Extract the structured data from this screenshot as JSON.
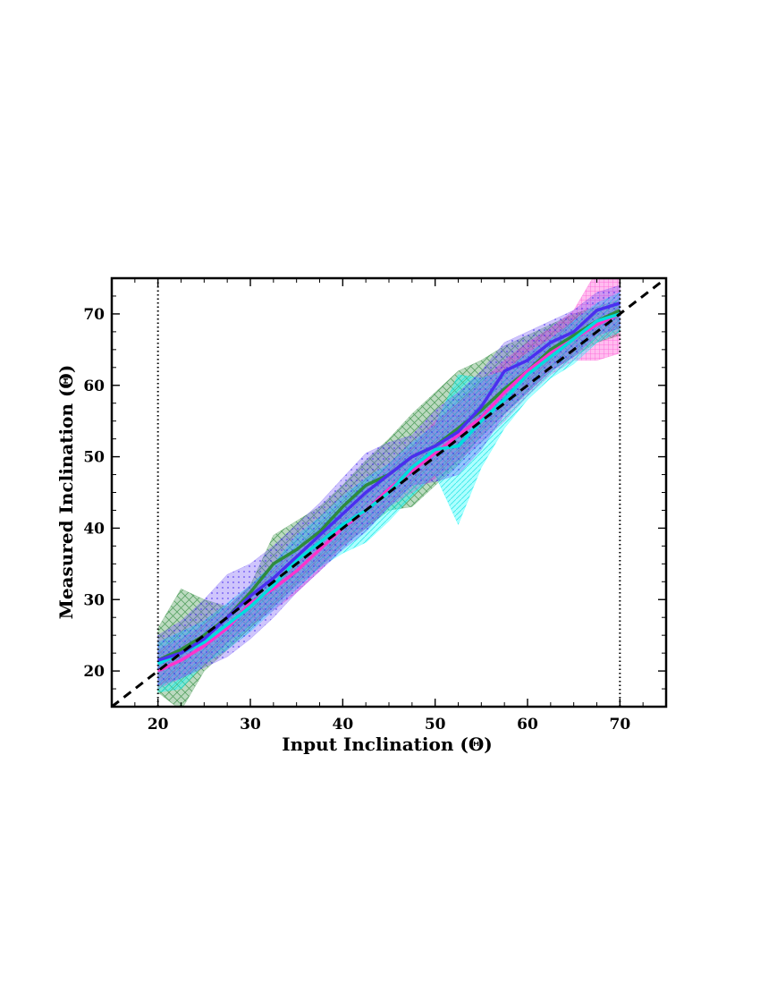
{
  "chart_data": {
    "type": "area",
    "xlabel": "Input Inclination (Θ)",
    "ylabel": "Measured Inclination (Θ)",
    "xlim": [
      15,
      75
    ],
    "ylim": [
      15,
      75
    ],
    "xticks": [
      20,
      30,
      40,
      50,
      60,
      70
    ],
    "yticks": [
      20,
      30,
      40,
      50,
      60,
      70
    ],
    "x_tick_labels": [
      "20",
      "30",
      "40",
      "50",
      "60",
      "70"
    ],
    "y_tick_labels": [
      "20",
      "30",
      "40",
      "50",
      "60",
      "70"
    ],
    "grid": false,
    "legend": "none",
    "vertical_reference_lines": [
      20,
      70
    ],
    "one_to_one_line": {
      "x": [
        15,
        75
      ],
      "y": [
        15,
        75
      ],
      "style": "dashed",
      "color": "#000000"
    },
    "x": [
      20,
      22.5,
      25,
      27.5,
      30,
      32.5,
      35,
      37.5,
      40,
      42.5,
      45,
      47.5,
      50,
      52.5,
      55,
      57.5,
      60,
      62.5,
      65,
      67.5,
      70
    ],
    "series": [
      {
        "color": "#2e8b3c",
        "fill": "#2e8b3c",
        "hatch": "cross",
        "y": [
          21.5,
          23,
          25,
          27.5,
          31,
          35,
          37,
          39.5,
          43,
          46,
          47.5,
          50,
          51.5,
          54,
          56.5,
          59.5,
          62,
          65,
          67,
          69,
          70.5
        ],
        "lower": [
          17,
          14.5,
          20,
          23,
          26,
          29,
          32,
          34.5,
          37.5,
          40,
          42.5,
          43,
          46,
          49,
          53,
          56,
          59,
          62,
          64,
          66,
          67
        ],
        "upper": [
          26,
          31.5,
          30,
          29,
          32,
          39,
          41,
          43,
          46,
          49.5,
          52.5,
          56,
          59,
          62,
          63.5,
          65.5,
          67,
          68.5,
          70,
          71,
          72
        ]
      },
      {
        "color": "#ff33cc",
        "fill": "#ff33cc",
        "hatch": "grid",
        "y": [
          20,
          21.5,
          23.5,
          26,
          29.5,
          31.5,
          34,
          37,
          40,
          42.5,
          45.5,
          48,
          50.5,
          53,
          55.5,
          59,
          62,
          64.5,
          66.5,
          68.5,
          70
        ],
        "lower": [
          17.5,
          19,
          21,
          24,
          26.5,
          28.5,
          31,
          34,
          37.5,
          40,
          43,
          45,
          47,
          49.5,
          52,
          55,
          58.5,
          61.5,
          63.5,
          63.5,
          64.5
        ],
        "upper": [
          23,
          24.5,
          26.5,
          29,
          32,
          34.5,
          37,
          40,
          43,
          45.5,
          49,
          51.5,
          55,
          57.5,
          60.5,
          63.5,
          66,
          68,
          70.5,
          76,
          76
        ]
      },
      {
        "color": "#00dddd",
        "fill": "#00ffff",
        "hatch": "diagonal",
        "y": [
          21,
          22.5,
          24,
          26.5,
          29,
          32,
          35.5,
          38,
          40.5,
          42.5,
          45,
          48.5,
          51,
          51.5,
          55,
          58,
          61.5,
          64,
          66.5,
          69,
          70
        ],
        "lower": [
          17,
          17.5,
          21,
          23,
          25.5,
          28.5,
          31.5,
          34.5,
          36.5,
          38,
          41,
          44.5,
          47.5,
          40.5,
          48.5,
          54,
          58,
          61,
          63,
          66,
          67.5
        ],
        "upper": [
          24,
          25.5,
          27,
          29.5,
          32,
          35,
          39,
          41.5,
          44.5,
          47,
          49,
          52,
          54.5,
          61.5,
          61,
          62,
          64.5,
          66.5,
          69,
          71.5,
          73
        ]
      },
      {
        "color": "#4a2ef0",
        "fill": "#6a4cf5",
        "hatch": "dots",
        "y": [
          21.5,
          22.5,
          24.5,
          27.5,
          30.5,
          33,
          36,
          39,
          42,
          45,
          47.5,
          50,
          51.5,
          53.5,
          57,
          62,
          63.5,
          66,
          67.5,
          70.5,
          71.5
        ],
        "lower": [
          18,
          19,
          20.5,
          22,
          24.5,
          27.5,
          31,
          34,
          37,
          39.5,
          43,
          46,
          46.5,
          47.5,
          51,
          56,
          59,
          62,
          64,
          67,
          68
        ],
        "upper": [
          25,
          27,
          30,
          33.5,
          35,
          37.5,
          40.5,
          43.5,
          47,
          50.5,
          52,
          53,
          56.5,
          59,
          62,
          66,
          67.5,
          69,
          70.5,
          73,
          74
        ]
      }
    ]
  }
}
